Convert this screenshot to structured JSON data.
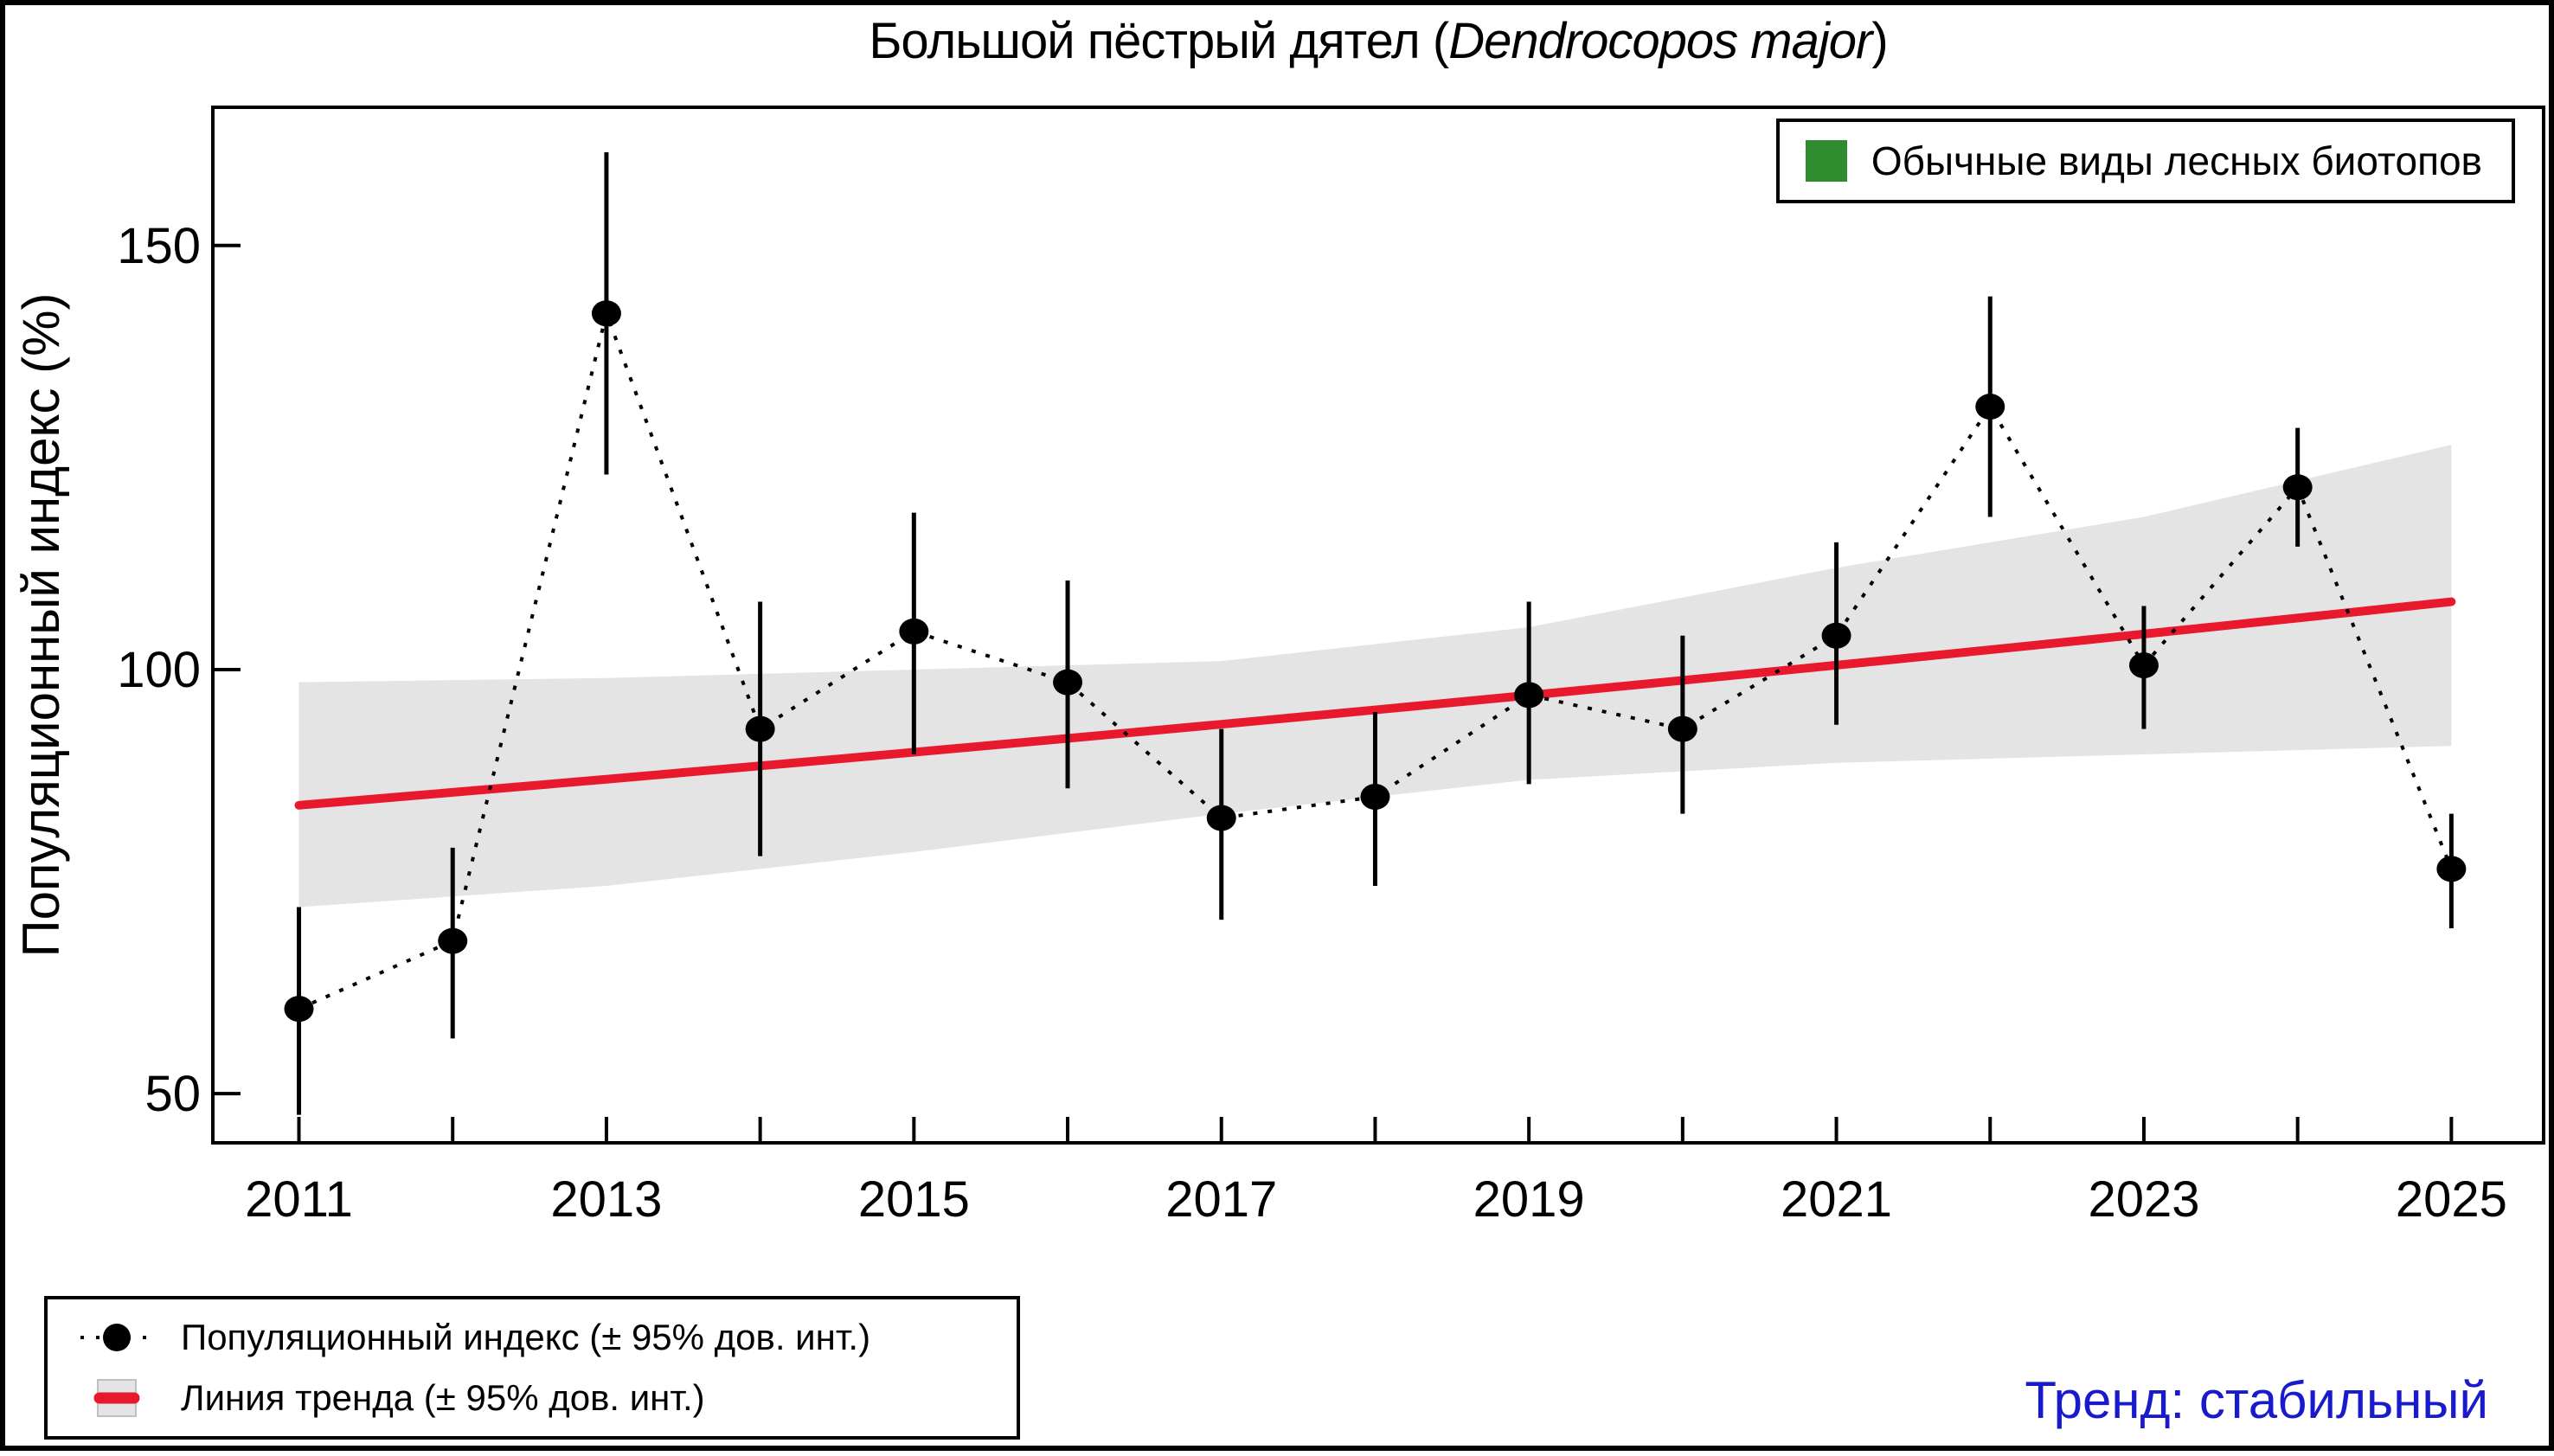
{
  "title": {
    "prefix": "Большой пёстрый дятел (",
    "italic": "Dendrocopos major",
    "suffix": ")"
  },
  "legend_top_right": {
    "label": "Обычные виды лесных биотопов",
    "swatch_icon": "green-square-icon"
  },
  "legend_bottom": {
    "items": [
      {
        "label": "Популяционный индекс (± 95% дов. инт.)",
        "marker": "black-dot-with-dotted-line"
      },
      {
        "label": "Линия тренда (± 95% дов. инт.)",
        "marker": "red-line-on-gray-band"
      }
    ]
  },
  "trend_note": {
    "text": "Тренд: стабильный"
  },
  "colors": {
    "trend_line_red": "#e8192c",
    "ci_band_gray": "#e4e4e4",
    "ci_band_swatch_border": "#c0c0c0",
    "points_black": "#000000",
    "habitat_green": "#2e8b2e",
    "trend_note_blue": "#1a1acd"
  },
  "chart_data": {
    "type": "line",
    "title": "Большой пёстрый дятел (Dendrocopos major)",
    "xlabel": "",
    "ylabel": "Популяционный индекс (%)",
    "grid": false,
    "legend_position": "bottom-left",
    "xlim": [
      2010.44,
      2025.6
    ],
    "ylim": [
      44.2,
      166.3
    ],
    "x_ticks": [
      2011,
      2012,
      2013,
      2014,
      2015,
      2016,
      2017,
      2018,
      2019,
      2020,
      2021,
      2022,
      2023,
      2024,
      2025
    ],
    "x_ticks_labeled": [
      2011,
      2013,
      2015,
      2017,
      2019,
      2021,
      2023,
      2025
    ],
    "y_ticks": [
      50,
      100,
      150
    ],
    "x": [
      2011,
      2012,
      2013,
      2014,
      2015,
      2016,
      2017,
      2018,
      2019,
      2020,
      2021,
      2022,
      2023,
      2024,
      2025
    ],
    "series": [
      {
        "name": "Популяционный индекс (± 95% дов. инт.)",
        "style": "black-points-dotted-line-error-bars",
        "values": [
          60,
          68,
          142,
          93,
          104.5,
          98.5,
          82.5,
          85,
          97,
          93,
          104,
          131,
          100.5,
          121.5,
          76.5
        ],
        "ci_lower": [
          47.5,
          56.5,
          123,
          78,
          90,
          86,
          70.5,
          74.5,
          86.5,
          83,
          93.5,
          118,
          93,
          114.5,
          69.5
        ],
        "ci_upper": [
          72,
          79,
          161,
          108,
          118.5,
          110.5,
          93,
          95,
          108,
          104,
          115,
          144,
          107.5,
          128.5,
          83
        ]
      },
      {
        "name": "Линия тренда (± 95% дов. инт.)",
        "style": "red-trend-line-with-gray-ci-band",
        "trend": {
          "start_year": 2011,
          "end_year": 2025,
          "start_value": 84,
          "end_value": 108,
          "interpolation": "geometric"
        },
        "band": {
          "years": [
            2011,
            2013,
            2015,
            2017,
            2019,
            2021,
            2023,
            2025
          ],
          "lower": [
            72,
            74.5,
            78.5,
            83,
            87,
            89,
            90,
            91
          ],
          "upper": [
            98.5,
            99,
            100,
            101,
            105,
            112,
            118,
            126.5
          ]
        }
      }
    ]
  }
}
